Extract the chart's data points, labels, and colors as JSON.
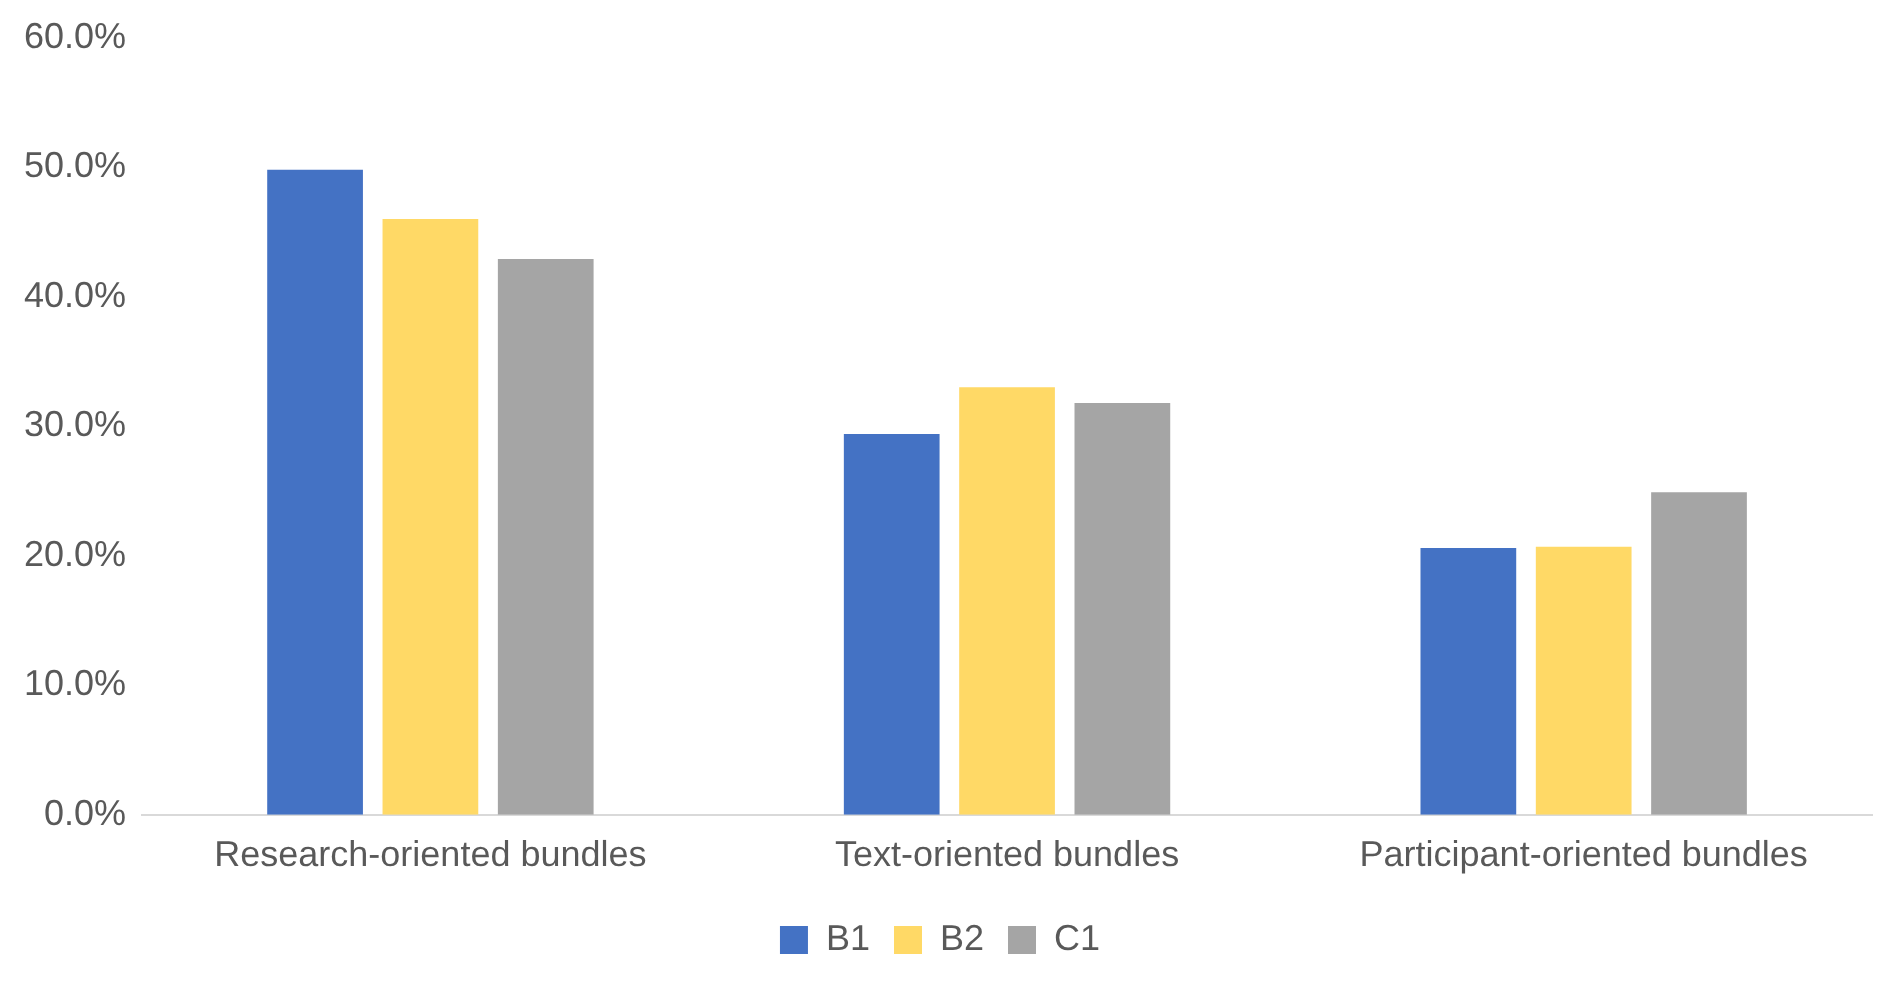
{
  "chart_data": {
    "type": "bar",
    "categories": [
      "Research-oriented bundles",
      "Text-oriented bundles",
      "Participant-oriented bundles"
    ],
    "series": [
      {
        "name": "B1",
        "color": "#4472c4",
        "values": [
          49.8,
          29.4,
          20.6
        ]
      },
      {
        "name": "B2",
        "color": "#ffd966",
        "values": [
          46.0,
          33.0,
          20.7
        ]
      },
      {
        "name": "C1",
        "color": "#a5a5a5",
        "values": [
          42.9,
          31.8,
          24.9
        ]
      }
    ],
    "ylim": [
      0,
      60
    ],
    "yticks": [
      {
        "value": 0,
        "label": "0.0%"
      },
      {
        "value": 10,
        "label": "10.0%"
      },
      {
        "value": 20,
        "label": "20.0%"
      },
      {
        "value": 30,
        "label": "30.0%"
      },
      {
        "value": 40,
        "label": "40.0%"
      },
      {
        "value": 50,
        "label": "50.0%"
      },
      {
        "value": 60,
        "label": "60.0%"
      }
    ],
    "grid": false,
    "legend": "bottom"
  }
}
